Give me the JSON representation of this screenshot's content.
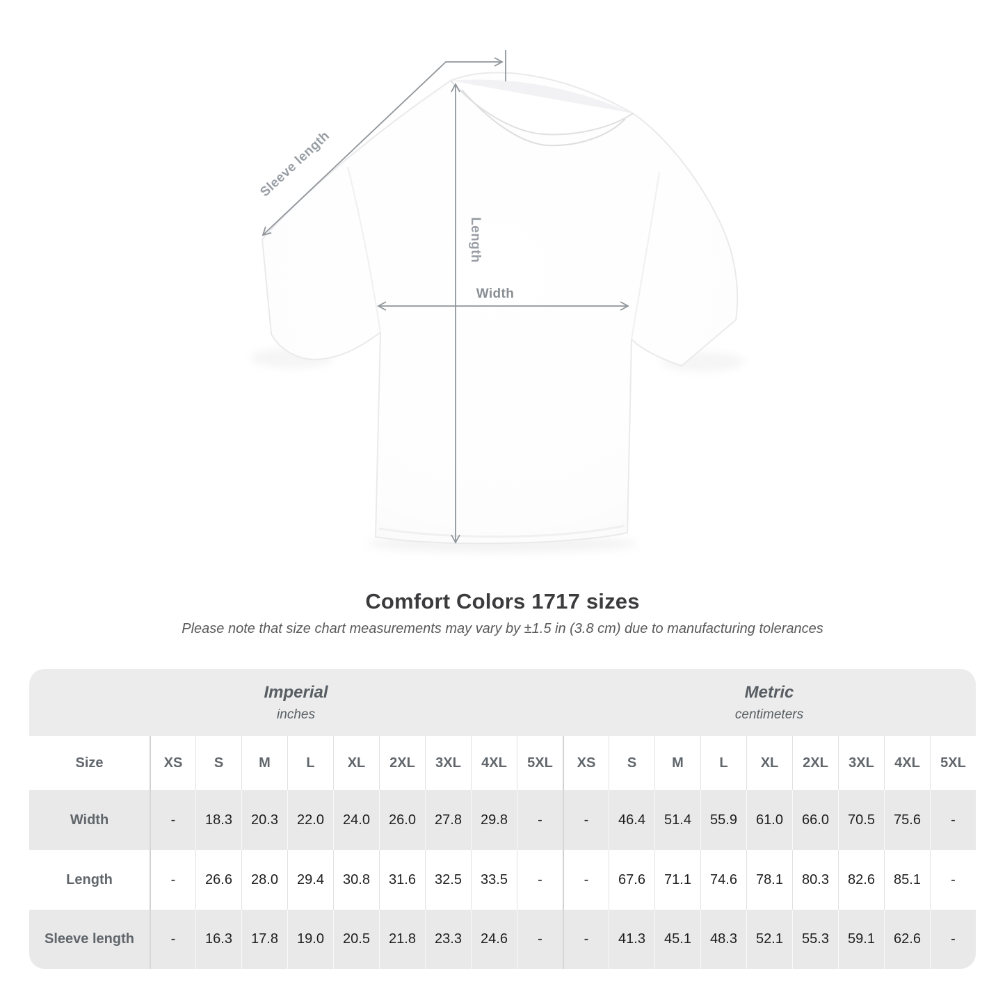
{
  "diagram": {
    "sleeve_label": "Sleeve length",
    "length_label": "Length",
    "width_label": "Width"
  },
  "title": "Comfort Colors 1717 sizes",
  "subtitle": "Please note that size chart measurements may vary by ±1.5 in (3.8 cm) due to manufacturing tolerances",
  "table": {
    "unit_groups": [
      {
        "label": "Imperial",
        "sub": "inches"
      },
      {
        "label": "Metric",
        "sub": "centimeters"
      }
    ],
    "size_header": "Size",
    "sizes": [
      "XS",
      "S",
      "M",
      "L",
      "XL",
      "2XL",
      "3XL",
      "4XL",
      "5XL"
    ],
    "rows": [
      {
        "label": "Width",
        "imperial": [
          "-",
          "18.3",
          "20.3",
          "22.0",
          "24.0",
          "26.0",
          "27.8",
          "29.8",
          "-"
        ],
        "metric": [
          "-",
          "46.4",
          "51.4",
          "55.9",
          "61.0",
          "66.0",
          "70.5",
          "75.6",
          "-"
        ]
      },
      {
        "label": "Length",
        "imperial": [
          "-",
          "26.6",
          "28.0",
          "29.4",
          "30.8",
          "31.6",
          "32.5",
          "33.5",
          "-"
        ],
        "metric": [
          "-",
          "67.6",
          "71.1",
          "74.6",
          "78.1",
          "80.3",
          "82.6",
          "85.1",
          "-"
        ]
      },
      {
        "label": "Sleeve length",
        "imperial": [
          "-",
          "16.3",
          "17.8",
          "19.0",
          "20.5",
          "21.8",
          "23.3",
          "24.6",
          "-"
        ],
        "metric": [
          "-",
          "41.3",
          "45.1",
          "48.3",
          "52.1",
          "55.3",
          "59.1",
          "62.6",
          "-"
        ]
      }
    ]
  },
  "colors": {
    "measure_line": "#8f959a",
    "measure_label": "#989ea4",
    "band_gray": "#ececec",
    "row_gray": "#e9e9e9",
    "title_text": "#3b3b3d"
  }
}
